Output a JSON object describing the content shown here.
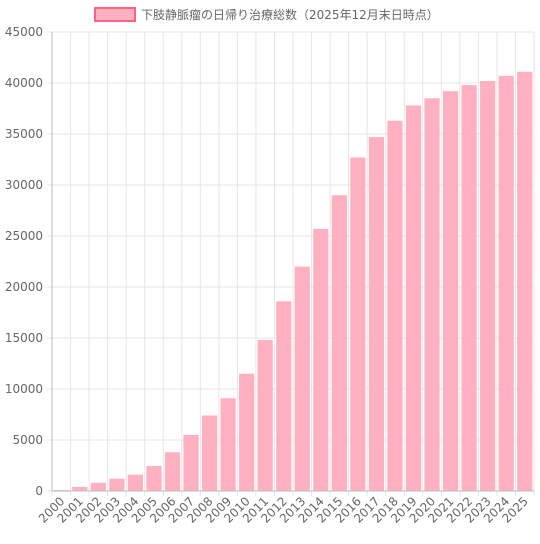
{
  "chart_data": {
    "type": "bar",
    "legend_label": "下肢静脈瘤の日帰り治療総数（2025年12月末日時点）",
    "legend_position": "top-center",
    "categories": [
      "2000",
      "2001",
      "2002",
      "2003",
      "2004",
      "2005",
      "2006",
      "2007",
      "2008",
      "2009",
      "2010",
      "2011",
      "2012",
      "2013",
      "2014",
      "2015",
      "2016",
      "2017",
      "2018",
      "2019",
      "2020",
      "2021",
      "2022",
      "2023",
      "2024",
      "2025"
    ],
    "values": [
      100,
      400,
      800,
      1200,
      1600,
      2450,
      3800,
      5500,
      7400,
      9100,
      11500,
      14800,
      18600,
      22000,
      25700,
      29000,
      32700,
      34700,
      36300,
      37800,
      38500,
      39200,
      39800,
      40200,
      40700,
      41100
    ],
    "ylim": [
      0,
      45000
    ],
    "yticks": [
      0,
      5000,
      10000,
      15000,
      20000,
      25000,
      30000,
      35000,
      40000,
      45000
    ],
    "grid": true,
    "colors": {
      "bar_fill": "#ffb1c1",
      "bar_border": "#ff6384",
      "legend_fill": "#ffb1c1",
      "legend_border": "#ff6384",
      "grid": "#e6e6e6",
      "axis": "#bdbdbd",
      "text": "#666666"
    }
  }
}
